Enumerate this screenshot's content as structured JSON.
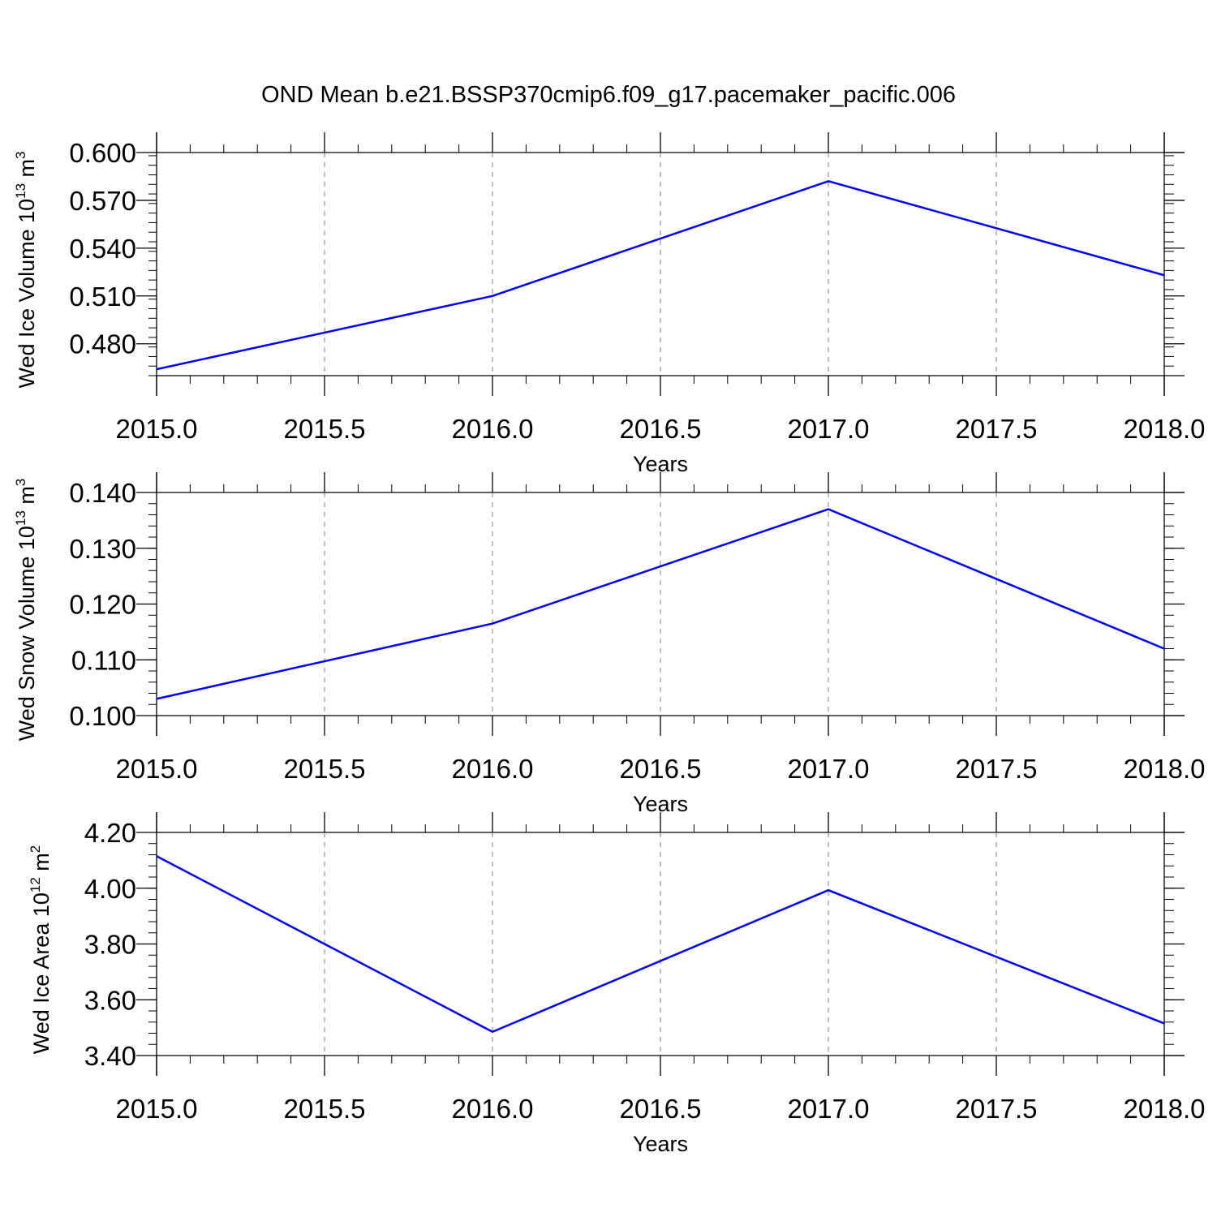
{
  "figure_title": "OND Mean b.e21.BSSP370cmip6.f09_g17.pacemaker_pacific.006",
  "colors": {
    "line": "#0000ff",
    "frame": "#000000",
    "grid": "#808080"
  },
  "chart_data": [
    {
      "type": "line",
      "title": "OND Mean b.e21.BSSP370cmip6.f09_g17.pacemaker_pacific.006",
      "xlabel": "Years",
      "ylabel": {
        "prefix": "Wed Ice Volume 10",
        "exponent": "13",
        "unit": " m",
        "unit_exponent": "3"
      },
      "x": [
        2015.0,
        2016.0,
        2017.0,
        2018.0
      ],
      "y": [
        0.464,
        0.51,
        0.582,
        0.523
      ],
      "xlim": [
        2015.0,
        2018.0
      ],
      "ylim": [
        0.46,
        0.6
      ],
      "xticks": [
        "2015.0",
        "2015.5",
        "2016.0",
        "2016.5",
        "2017.0",
        "2017.5",
        "2018.0"
      ],
      "yticks": [
        "0.480",
        "0.510",
        "0.540",
        "0.570",
        "0.600"
      ],
      "ytick_values": [
        0.48,
        0.51,
        0.54,
        0.57,
        0.6
      ],
      "grid": "vertical dashed at major x ticks"
    },
    {
      "type": "line",
      "xlabel": "Years",
      "ylabel": {
        "prefix": "Wed Snow Volume 10",
        "exponent": "13",
        "unit": " m",
        "unit_exponent": "3"
      },
      "x": [
        2015.0,
        2016.0,
        2017.0,
        2018.0
      ],
      "y": [
        0.103,
        0.1165,
        0.137,
        0.112
      ],
      "xlim": [
        2015.0,
        2018.0
      ],
      "ylim": [
        0.1,
        0.14
      ],
      "xticks": [
        "2015.0",
        "2015.5",
        "2016.0",
        "2016.5",
        "2017.0",
        "2017.5",
        "2018.0"
      ],
      "yticks": [
        "0.100",
        "0.110",
        "0.120",
        "0.130",
        "0.140"
      ],
      "ytick_values": [
        0.1,
        0.11,
        0.12,
        0.13,
        0.14
      ],
      "grid": "vertical dashed at major x ticks"
    },
    {
      "type": "line",
      "xlabel": "Years",
      "ylabel": {
        "prefix": "Wed Ice Area 10",
        "exponent": "12",
        "unit": " m",
        "unit_exponent": "2"
      },
      "x": [
        2015.0,
        2016.0,
        2017.0,
        2018.0
      ],
      "y": [
        4.115,
        3.485,
        3.993,
        3.515
      ],
      "xlim": [
        2015.0,
        2018.0
      ],
      "ylim": [
        3.4,
        4.2
      ],
      "xticks": [
        "2015.0",
        "2015.5",
        "2016.0",
        "2016.5",
        "2017.0",
        "2017.5",
        "2018.0"
      ],
      "yticks": [
        "3.40",
        "3.60",
        "3.80",
        "4.00",
        "4.20"
      ],
      "ytick_values": [
        3.4,
        3.6,
        3.8,
        4.0,
        4.2
      ],
      "grid": "vertical dashed at major x ticks"
    }
  ]
}
